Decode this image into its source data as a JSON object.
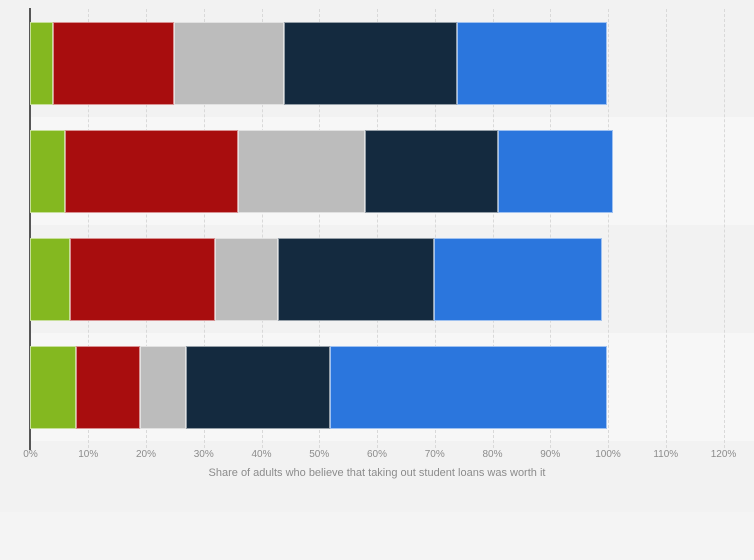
{
  "chart_data": {
    "type": "bar",
    "orientation": "horizontal",
    "stacked": true,
    "title": "",
    "xlabel": "Share of adults who believe that taking out student loans was worth it",
    "ylabel": "",
    "xlim": [
      0,
      120
    ],
    "x_tick_step": 10,
    "x_ticks": [
      "0%",
      "10%",
      "20%",
      "30%",
      "40%",
      "50%",
      "60%",
      "70%",
      "80%",
      "90%",
      "100%",
      "110%",
      "120%"
    ],
    "grid": "vertical-dashed",
    "legend": "none",
    "categories": [
      "",
      "",
      "",
      ""
    ],
    "series": [
      {
        "name": "green-segment",
        "color": "#84b820",
        "values": [
          4,
          6,
          7,
          8
        ]
      },
      {
        "name": "dark-red-segment",
        "color": "#a80d0e",
        "values": [
          21,
          30,
          25,
          11
        ]
      },
      {
        "name": "gray-segment",
        "color": "#bcbcbc",
        "values": [
          19,
          22,
          11,
          8
        ]
      },
      {
        "name": "dark-navy-segment",
        "color": "#142a3f",
        "values": [
          30,
          23,
          27,
          25
        ]
      },
      {
        "name": "blue-segment",
        "color": "#2b76dd",
        "values": [
          26,
          20,
          29,
          48
        ]
      }
    ],
    "row_totals": [
      100,
      101,
      99,
      100
    ]
  },
  "style_colors": {
    "page_background": "#f2f2f2",
    "band_dark": "#f2f2f2",
    "band_light": "#f7f7f7",
    "axis_line": "#565656",
    "gridline": "#d9d9d9",
    "label_text": "#8c8c8c"
  }
}
